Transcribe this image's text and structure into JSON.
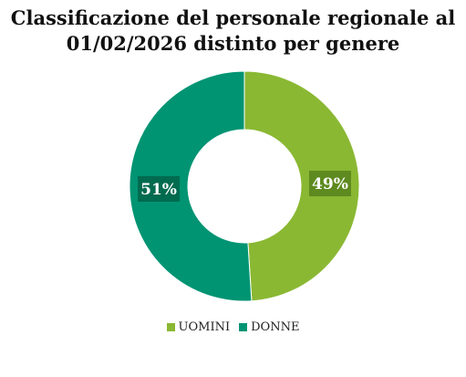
{
  "chart_data": {
    "type": "pie",
    "title_lines": [
      "Classificazione del personale regionale al",
      "01/02/2026 distinto per genere"
    ],
    "categories": [
      "UOMINI",
      "DONNE"
    ],
    "values": [
      49,
      51
    ],
    "labels": [
      "49%",
      "51%"
    ],
    "colors": [
      "#8ab833",
      "#009473"
    ],
    "label_bg_colors": [
      "#5e8a1f",
      "#006b4f"
    ],
    "legend_position": "bottom",
    "donut": true
  }
}
